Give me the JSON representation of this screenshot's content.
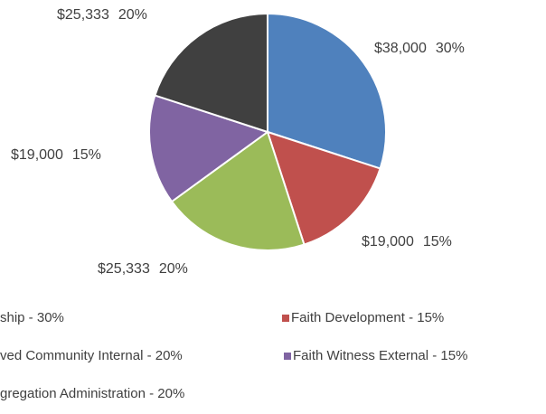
{
  "chart_data": {
    "type": "pie",
    "categories": [
      "ship - 30%",
      "Faith Development - 15%",
      "ved Community Internal - 20%",
      "Faith Witness External - 15%",
      "gregation Administration - 20%"
    ],
    "values": [
      38000,
      19000,
      25333,
      19000,
      25333
    ],
    "value_labels": [
      "$38,000",
      "$19,000",
      "$25,333",
      "$19,000",
      "$25,333"
    ],
    "percents": [
      30,
      15,
      20,
      15,
      20
    ],
    "percent_labels": [
      "30%",
      "15%",
      "20%",
      "15%",
      "20%"
    ],
    "colors": [
      "#4f81bd",
      "#c0504d",
      "#9bbb59",
      "#8064a2",
      "#404040"
    ],
    "legend": "bottom"
  }
}
